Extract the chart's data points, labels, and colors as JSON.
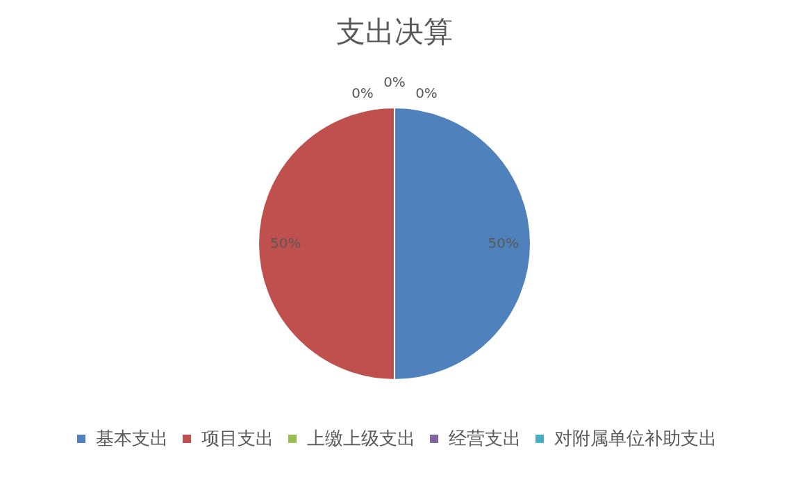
{
  "chart_data": {
    "type": "pie",
    "title": "支出决算",
    "categories": [
      "基本支出",
      "项目支出",
      "上缴上级支出",
      "经营支出",
      "对附属单位补助支出"
    ],
    "values": [
      50,
      50,
      0,
      0,
      0
    ],
    "colors": [
      "#4f81bd",
      "#c0504d",
      "#9bbb59",
      "#8064a2",
      "#4bacc6"
    ],
    "value_labels": [
      "50%",
      "50%",
      "0%",
      "0%",
      "0%"
    ],
    "legend": "bottom"
  }
}
